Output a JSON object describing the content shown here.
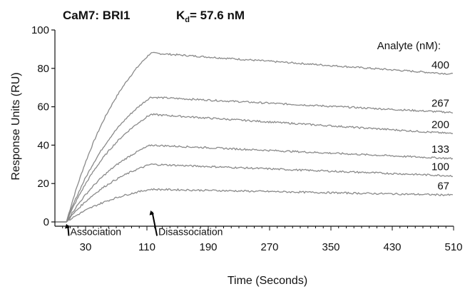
{
  "chart_data": {
    "type": "line",
    "title": "CaM7: BRI1",
    "kd_symbol": "K",
    "kd_subscript": "d",
    "kd_value": "= 57.6 nM",
    "xlabel": "Time (Seconds)",
    "ylabel": "Response Units (RU)",
    "xlim": [
      -10,
      510
    ],
    "ylim": [
      0,
      100
    ],
    "xticks": [
      30,
      110,
      190,
      270,
      350,
      430,
      510
    ],
    "yticks": [
      0,
      20,
      40,
      60,
      80,
      100
    ],
    "grid": false,
    "legend_title": "Analyte (nM):",
    "injection_end": 115,
    "series": [
      {
        "name": "400",
        "values": [
          [
            -10,
            0
          ],
          [
            5,
            0
          ],
          [
            115,
            88
          ],
          [
            510,
            77
          ]
        ]
      },
      {
        "name": "267",
        "values": [
          [
            -10,
            0
          ],
          [
            5,
            0
          ],
          [
            115,
            65
          ],
          [
            510,
            57
          ]
        ]
      },
      {
        "name": "200",
        "values": [
          [
            -10,
            0
          ],
          [
            5,
            0
          ],
          [
            115,
            56
          ],
          [
            510,
            46
          ]
        ]
      },
      {
        "name": "133",
        "values": [
          [
            -10,
            0
          ],
          [
            5,
            0
          ],
          [
            115,
            40
          ],
          [
            510,
            33
          ]
        ]
      },
      {
        "name": "100",
        "values": [
          [
            -10,
            0
          ],
          [
            5,
            0
          ],
          [
            115,
            30
          ],
          [
            510,
            24
          ]
        ]
      },
      {
        "name": "67",
        "values": [
          [
            -10,
            0
          ],
          [
            5,
            0
          ],
          [
            115,
            17
          ],
          [
            510,
            14
          ]
        ]
      }
    ],
    "annotations": [
      {
        "text": "Association",
        "x": 10,
        "y": -5,
        "arrow_to": [
          5,
          -1
        ]
      },
      {
        "text": "Disassociation",
        "x": 125,
        "y": -5,
        "arrow_to": [
          115,
          6
        ]
      }
    ],
    "line_color": "#8a8a8a"
  }
}
